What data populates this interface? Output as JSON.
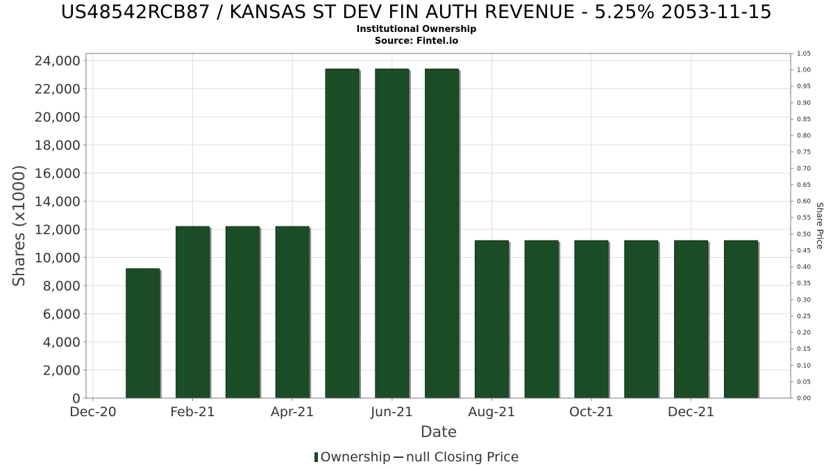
{
  "title": "US48542RCB87 / KANSAS ST DEV FIN AUTH REVENUE - 5.25% 2053-11-15",
  "subtitle": "Institutional Ownership",
  "source": "Source: Fintel.io",
  "legend": {
    "ownership": "Ownership",
    "closing_price": "null Closing Price"
  },
  "colors": {
    "bar": "#1a4a25",
    "bar_shadow": "#8a8a8a",
    "grid": "#dddddd"
  },
  "chart_data": {
    "type": "bar",
    "xlabel": "Date",
    "ylabel": "Shares (x1000)",
    "y2label": "Share Price",
    "ylim": [
      0,
      24500
    ],
    "y2lim": [
      0,
      1.05
    ],
    "grid": true,
    "legend_position": "bottom",
    "x_ticks": [
      "Dec-20",
      "Feb-21",
      "Apr-21",
      "Jun-21",
      "Aug-21",
      "Oct-21",
      "Dec-21"
    ],
    "y_ticks": [
      "0",
      "2,000",
      "4,000",
      "6,000",
      "8,000",
      "10,000",
      "12,000",
      "14,000",
      "16,000",
      "18,000",
      "20,000",
      "22,000",
      "24,000"
    ],
    "y2_ticks": [
      "0.00",
      "0.05",
      "0.10",
      "0.15",
      "0.20",
      "0.25",
      "0.30",
      "0.35",
      "0.40",
      "0.45",
      "0.50",
      "0.55",
      "0.60",
      "0.65",
      "0.70",
      "0.75",
      "0.80",
      "0.85",
      "0.90",
      "0.95",
      "1.00",
      "1.05"
    ],
    "series": [
      {
        "name": "Ownership",
        "x": [
          "Jan-21",
          "Feb-21",
          "Mar-21",
          "Apr-21",
          "May-21",
          "Jun-21",
          "Jul-21",
          "Aug-21",
          "Sep-21",
          "Oct-21",
          "Nov-21",
          "Dec-21",
          "Jan-22"
        ],
        "values": [
          9200,
          12200,
          12200,
          12200,
          23400,
          23400,
          23400,
          11200,
          11200,
          11200,
          11200,
          11200,
          11200
        ]
      }
    ]
  }
}
